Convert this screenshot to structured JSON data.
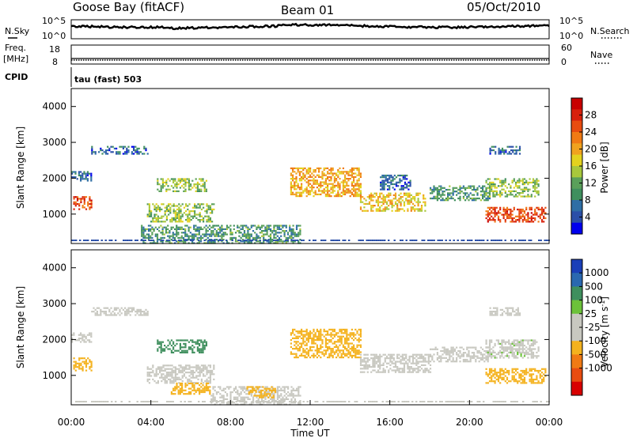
{
  "header": {
    "station": "Goose Bay (fitACF)",
    "beam": "Beam 01",
    "date": "05/Oct/2010"
  },
  "top_panels": {
    "nsky_label": "N.Sky",
    "nsearch_label": "N.Search",
    "noise_ticks": [
      "10^5",
      "10^0"
    ],
    "freq_label": "Freq.",
    "freq_unit": "[MHz]",
    "freq_ticks": [
      "18",
      "8"
    ],
    "nave_label": "Nave",
    "nave_ticks": [
      "60",
      "0"
    ],
    "cpid_label": "CPID",
    "cpid_value": "tau (fast) 503"
  },
  "chart_data": [
    {
      "type": "heatmap",
      "title": "",
      "ylabel": "Slant Range [km]",
      "xlabel": "",
      "xlim": [
        0,
        24
      ],
      "ylim": [
        180,
        4500
      ],
      "yticks": [
        1000,
        2000,
        3000,
        4000
      ],
      "colorbar": {
        "label": "Power [dB]",
        "range": [
          0,
          32
        ],
        "ticks": [
          "28",
          "24",
          "20",
          "16",
          "12",
          "8",
          "4"
        ],
        "colors": [
          "#0000ee",
          "#2a4fa8",
          "#2e6ea5",
          "#3f8f5e",
          "#5aa05a",
          "#a8c83c",
          "#e3d21e",
          "#f0a21e",
          "#f07a14",
          "#e84c10",
          "#d8200c",
          "#c80000"
        ]
      },
      "regions": [
        {
          "t": [
            0.0,
            1.0
          ],
          "r": [
            1950,
            2200
          ],
          "v": 6
        },
        {
          "t": [
            0.1,
            1.0
          ],
          "r": [
            1150,
            1500
          ],
          "v": 26
        },
        {
          "t": [
            1.0,
            3.8
          ],
          "r": [
            2700,
            2900
          ],
          "v": 6
        },
        {
          "t": [
            4.3,
            6.8
          ],
          "r": [
            1650,
            2000
          ],
          "v": 14
        },
        {
          "t": [
            3.8,
            7.2
          ],
          "r": [
            800,
            1300
          ],
          "v": 14
        },
        {
          "t": [
            3.5,
            11.5
          ],
          "r": [
            200,
            700
          ],
          "v": 10
        },
        {
          "t": [
            11.0,
            14.5
          ],
          "r": [
            1500,
            2300
          ],
          "v": 20
        },
        {
          "t": [
            14.5,
            17.8
          ],
          "r": [
            1100,
            1600
          ],
          "v": 18
        },
        {
          "t": [
            15.5,
            17.0
          ],
          "r": [
            1700,
            2100
          ],
          "v": 6
        },
        {
          "t": [
            18.0,
            21.0
          ],
          "r": [
            1400,
            1800
          ],
          "v": 10
        },
        {
          "t": [
            20.8,
            23.5
          ],
          "r": [
            1500,
            2000
          ],
          "v": 14
        },
        {
          "t": [
            20.8,
            23.8
          ],
          "r": [
            800,
            1200
          ],
          "v": 26
        },
        {
          "t": [
            21.0,
            22.5
          ],
          "r": [
            2700,
            2900
          ],
          "v": 6
        }
      ]
    },
    {
      "type": "heatmap",
      "title": "",
      "ylabel": "Slant Range [km]",
      "xlabel": "Time UT",
      "xlim": [
        0,
        24
      ],
      "ylim": [
        180,
        4500
      ],
      "yticks": [
        1000,
        2000,
        3000,
        4000
      ],
      "xticks": [
        "00:00",
        "04:00",
        "08:00",
        "12:00",
        "16:00",
        "20:00",
        "00:00"
      ],
      "colorbar": {
        "label": "Velocity [m s^-1]",
        "unit_main": "Velocity [m s",
        "unit_exp": "-1",
        "unit_close": "]",
        "ticks": [
          "1000",
          "500",
          "100",
          "25",
          "-25",
          "-100",
          "-500",
          "-1000"
        ],
        "colors": [
          "#1a3fb8",
          "#2a68b0",
          "#3f8f5e",
          "#6cc23a",
          "#c8c8c0",
          "#c8c8c0",
          "#f4b21e",
          "#f07a14",
          "#e84c10",
          "#d80000"
        ]
      },
      "regions": [
        {
          "t": [
            0.0,
            1.0
          ],
          "r": [
            1950,
            2200
          ],
          "v": -10
        },
        {
          "t": [
            0.1,
            1.0
          ],
          "r": [
            1150,
            1500
          ],
          "v": -200
        },
        {
          "t": [
            1.0,
            3.8
          ],
          "r": [
            2700,
            2900
          ],
          "v": 0
        },
        {
          "t": [
            4.3,
            6.8
          ],
          "r": [
            1650,
            2000
          ],
          "v": 80
        },
        {
          "t": [
            3.8,
            7.2
          ],
          "r": [
            800,
            1300
          ],
          "v": 0
        },
        {
          "t": [
            5.0,
            7.0
          ],
          "r": [
            500,
            800
          ],
          "v": -150
        },
        {
          "t": [
            7.0,
            11.5
          ],
          "r": [
            200,
            700
          ],
          "v": -20
        },
        {
          "t": [
            8.8,
            10.2
          ],
          "r": [
            400,
            700
          ],
          "v": -150
        },
        {
          "t": [
            11.0,
            14.5
          ],
          "r": [
            1500,
            2300
          ],
          "v": -200
        },
        {
          "t": [
            14.5,
            18.0
          ],
          "r": [
            1100,
            1600
          ],
          "v": 0
        },
        {
          "t": [
            18.0,
            21.0
          ],
          "r": [
            1400,
            1800
          ],
          "v": 0
        },
        {
          "t": [
            20.8,
            23.5
          ],
          "r": [
            1500,
            2000
          ],
          "v": 10
        },
        {
          "t": [
            20.8,
            23.8
          ],
          "r": [
            800,
            1200
          ],
          "v": -150
        },
        {
          "t": [
            21.0,
            22.5
          ],
          "r": [
            2700,
            2900
          ],
          "v": 0
        }
      ]
    }
  ]
}
